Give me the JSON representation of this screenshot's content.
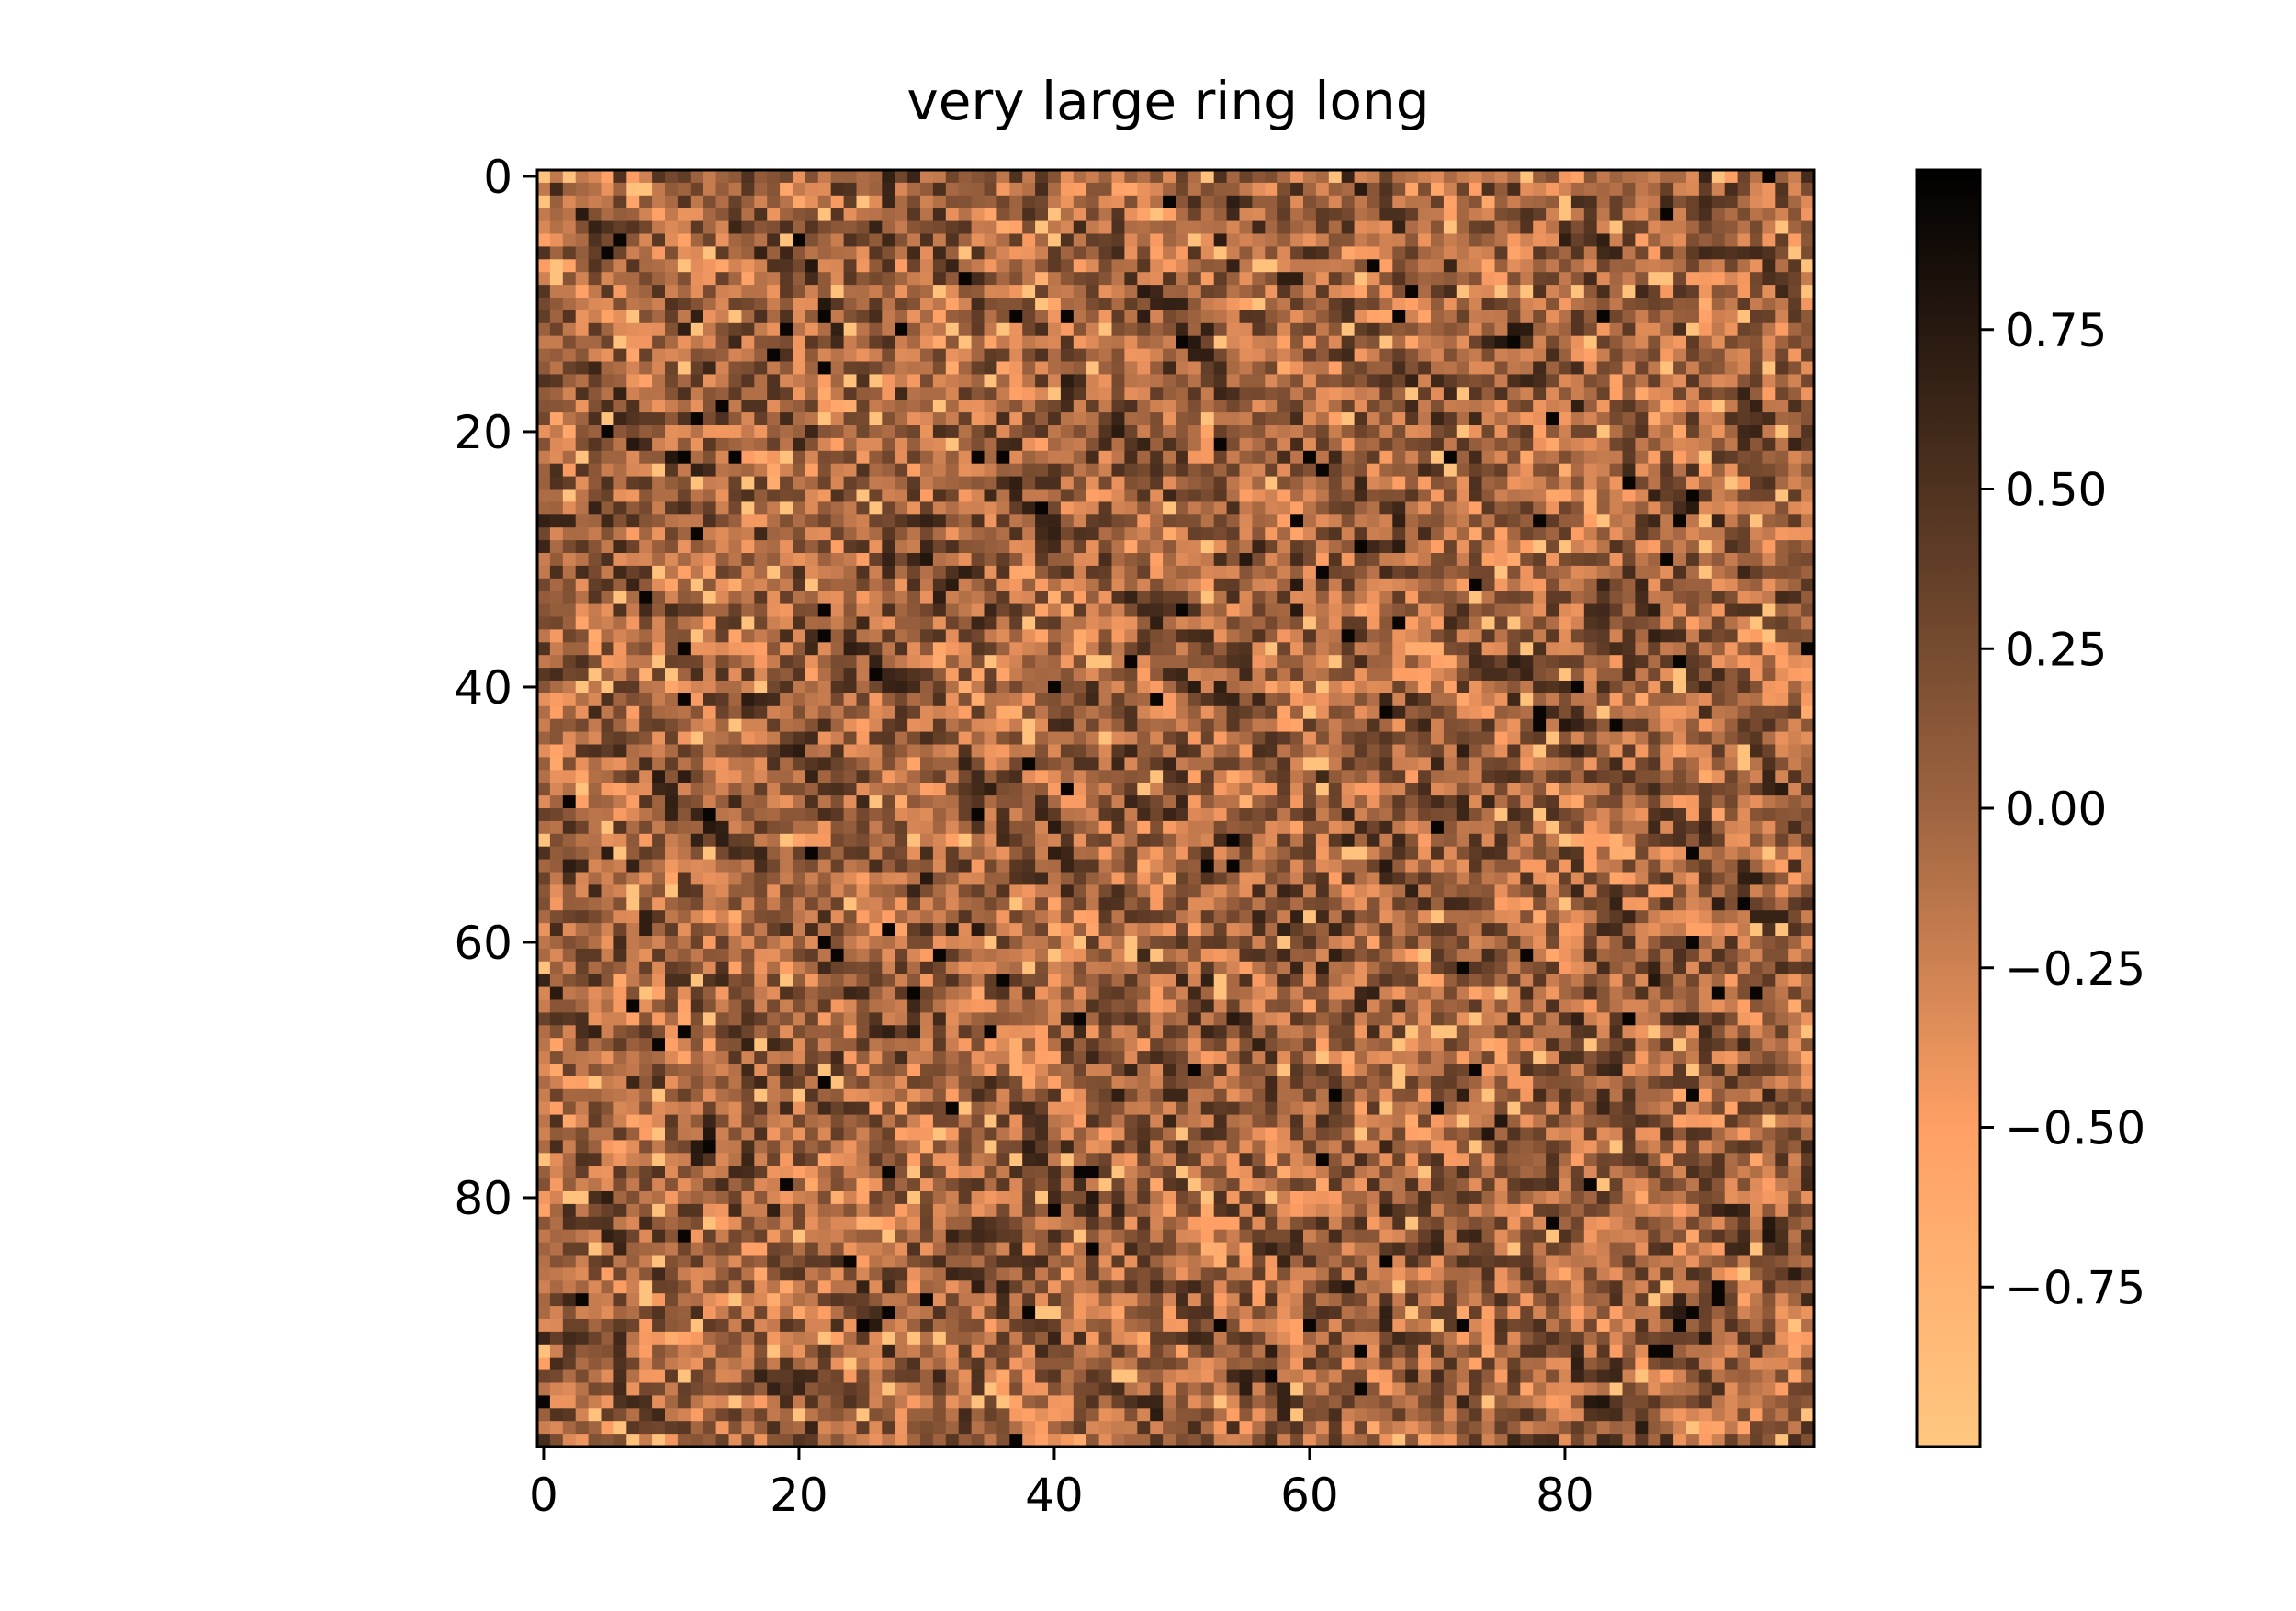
{
  "chart_data": {
    "type": "heatmap",
    "title": "very large ring long",
    "rows": 100,
    "cols": 100,
    "xlim": [
      -0.5,
      99.5
    ],
    "ylim": [
      99.5,
      -0.5
    ],
    "x_ticks": [
      {
        "value": 0,
        "label": "0"
      },
      {
        "value": 20,
        "label": "20"
      },
      {
        "value": 40,
        "label": "40"
      },
      {
        "value": 60,
        "label": "60"
      },
      {
        "value": 80,
        "label": "80"
      }
    ],
    "y_ticks": [
      {
        "value": 0,
        "label": "0"
      },
      {
        "value": 20,
        "label": "20"
      },
      {
        "value": 40,
        "label": "40"
      },
      {
        "value": 60,
        "label": "60"
      },
      {
        "value": 80,
        "label": "80"
      }
    ],
    "colorbar": {
      "colormap": "copper_r",
      "vmin": -1.0,
      "vmax": 1.0,
      "ticks": [
        {
          "value": 0.75,
          "label": "0.75"
        },
        {
          "value": 0.5,
          "label": "0.50"
        },
        {
          "value": 0.25,
          "label": "0.25"
        },
        {
          "value": 0.0,
          "label": "0.00"
        },
        {
          "value": -0.25,
          "label": "−0.25"
        },
        {
          "value": -0.5,
          "label": "−0.50"
        },
        {
          "value": -0.75,
          "label": "−0.75"
        }
      ]
    },
    "colors": {
      "high": "#000000",
      "mid": "#9e6440",
      "low": "#ffc77f"
    }
  }
}
